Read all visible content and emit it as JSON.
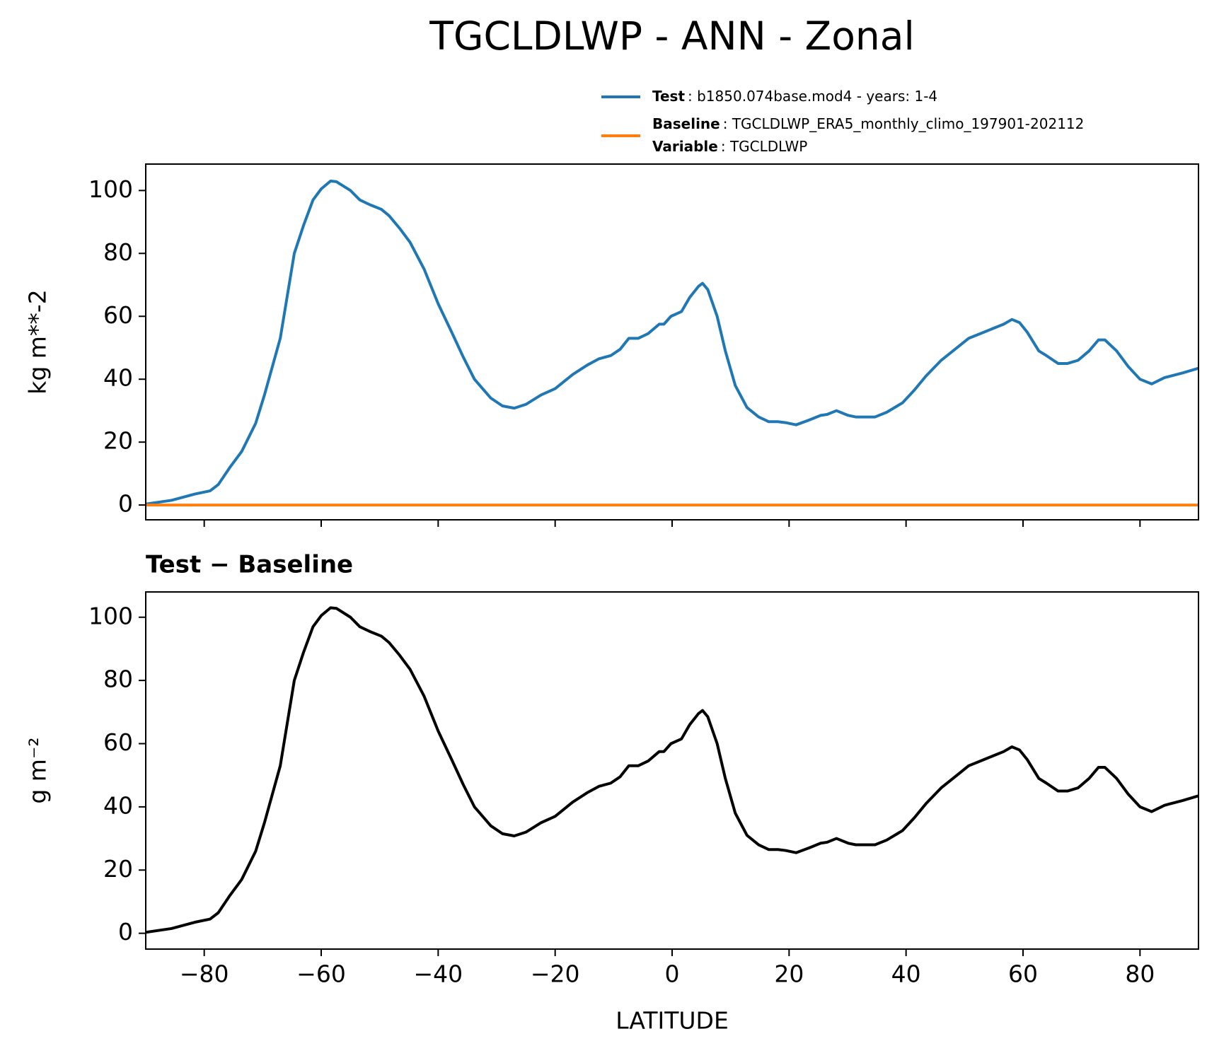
{
  "title": "TGCLDLWP - ANN - Zonal",
  "chart_data": [
    {
      "type": "line",
      "ylabel": "kg m**-2",
      "x": [
        -90,
        -85.6,
        -81.6,
        -79,
        -77.6,
        -75.6,
        -73.6,
        -71.2,
        -69.7,
        -67,
        -64.6,
        -63,
        -61.4,
        -60,
        -58.4,
        -57.4,
        -55,
        -53.4,
        -51.7,
        -49.7,
        -48.4,
        -46.6,
        -44.8,
        -42.4,
        -40,
        -37.7,
        -35.7,
        -33.8,
        -31,
        -29,
        -27,
        -25,
        -22.4,
        -20,
        -17,
        -14.5,
        -12.5,
        -10.5,
        -8.9,
        -7.4,
        -5.8,
        -4.1,
        -2.2,
        -1.4,
        -0.2,
        1.6,
        3,
        4.5,
        5.2,
        6.1,
        7.7,
        9.1,
        10.8,
        12.8,
        14.8,
        16.5,
        18.1,
        19.4,
        21.2,
        23.4,
        25.4,
        26.5,
        28.1,
        30.1,
        31.4,
        34.7,
        36.7,
        39.4,
        41.4,
        43.4,
        46,
        48.7,
        50.7,
        52.7,
        54.7,
        56.7,
        58.1,
        59.4,
        60.7,
        62.7,
        64,
        66,
        67.6,
        69.4,
        71.3,
        72.9,
        74,
        76,
        78,
        80,
        82,
        84.2,
        87.3,
        90
      ],
      "series": [
        {
          "name": "Test",
          "detail": ": b1850.074base.mod4 - years: 1-4",
          "color": "#1f77b4",
          "values": [
            0.3,
            1.5,
            3.5,
            4.5,
            6.5,
            12,
            17,
            26,
            35,
            53,
            80,
            89,
            97,
            100.5,
            103,
            102.8,
            100,
            97,
            95.5,
            94,
            92,
            88,
            83.5,
            75,
            64,
            55,
            47,
            40,
            34,
            31.5,
            30.8,
            32,
            35,
            37,
            41.5,
            44.5,
            46.5,
            47.5,
            49.5,
            53,
            53,
            54.5,
            57.5,
            57.5,
            60,
            61.5,
            66,
            69.5,
            70.5,
            68.5,
            60,
            49,
            38,
            31,
            28,
            26.5,
            26.5,
            26.2,
            25.5,
            27,
            28.5,
            28.8,
            30,
            28.5,
            28,
            28,
            29.5,
            32.5,
            36.5,
            41,
            46,
            50,
            53,
            54.5,
            56,
            57.5,
            59,
            58,
            55,
            49,
            47.5,
            45,
            45,
            46,
            49,
            52.5,
            52.5,
            49,
            44,
            40,
            38.5,
            40.5,
            42,
            43.5
          ]
        },
        {
          "name": "Baseline",
          "detail": ": TGCLDLWP_ERA5_monthly_climo_197901-202112",
          "color": "#ff7f0e",
          "extra": {
            "name": "Variable",
            "detail": ": TGCLDLWP"
          },
          "x": [
            -90,
            90
          ],
          "values": [
            0,
            0
          ]
        }
      ],
      "xlim": [
        -90,
        90
      ],
      "xticks": [
        -80,
        -60,
        -40,
        -20,
        0,
        20,
        40,
        60,
        80
      ],
      "ylim": [
        -4.7,
        108.4
      ],
      "yticks": [
        0,
        20,
        40,
        60,
        80,
        100
      ]
    },
    {
      "type": "line",
      "title": "Test − Baseline",
      "xlabel": "LATITUDE",
      "ylabel": "g m⁻²",
      "x": [
        -90,
        -85.6,
        -81.6,
        -79,
        -77.6,
        -75.6,
        -73.6,
        -71.2,
        -69.7,
        -67,
        -64.6,
        -63,
        -61.4,
        -60,
        -58.4,
        -57.4,
        -55,
        -53.4,
        -51.7,
        -49.7,
        -48.4,
        -46.6,
        -44.8,
        -42.4,
        -40,
        -37.7,
        -35.7,
        -33.8,
        -31,
        -29,
        -27,
        -25,
        -22.4,
        -20,
        -17,
        -14.5,
        -12.5,
        -10.5,
        -8.9,
        -7.4,
        -5.8,
        -4.1,
        -2.2,
        -1.4,
        -0.2,
        1.6,
        3,
        4.5,
        5.2,
        6.1,
        7.7,
        9.1,
        10.8,
        12.8,
        14.8,
        16.5,
        18.1,
        19.4,
        21.2,
        23.4,
        25.4,
        26.5,
        28.1,
        30.1,
        31.4,
        34.7,
        36.7,
        39.4,
        41.4,
        43.4,
        46,
        48.7,
        50.7,
        52.7,
        54.7,
        56.7,
        58.1,
        59.4,
        60.7,
        62.7,
        64,
        66,
        67.6,
        69.4,
        71.3,
        72.9,
        74,
        76,
        78,
        80,
        82,
        84.2,
        87.3,
        90
      ],
      "series": [
        {
          "color": "#000000",
          "values": [
            0.3,
            1.5,
            3.5,
            4.5,
            6.5,
            12,
            17,
            26,
            35,
            53,
            80,
            89,
            97,
            100.5,
            103,
            102.8,
            100,
            97,
            95.5,
            94,
            92,
            88,
            83.5,
            75,
            64,
            55,
            47,
            40,
            34,
            31.5,
            30.8,
            32,
            35,
            37,
            41.5,
            44.5,
            46.5,
            47.5,
            49.5,
            53,
            53,
            54.5,
            57.5,
            57.5,
            60,
            61.5,
            66,
            69.5,
            70.5,
            68.5,
            60,
            49,
            38,
            31,
            28,
            26.5,
            26.5,
            26.2,
            25.5,
            27,
            28.5,
            28.8,
            30,
            28.5,
            28,
            28,
            29.5,
            32.5,
            36.5,
            41,
            46,
            50,
            53,
            54.5,
            56,
            57.5,
            59,
            58,
            55,
            49,
            47.5,
            45,
            45,
            46,
            49,
            52.5,
            52.5,
            49,
            44,
            40,
            38.5,
            40.5,
            42,
            43.5
          ]
        }
      ],
      "xlim": [
        -90,
        90
      ],
      "xticks": [
        {
          "value": -80,
          "label": "−80"
        },
        {
          "value": -60,
          "label": "−60"
        },
        {
          "value": -40,
          "label": "−40"
        },
        {
          "value": -20,
          "label": "−20"
        },
        0,
        20,
        40,
        60,
        80
      ],
      "ylim": [
        -5,
        108
      ],
      "yticks": [
        0,
        20,
        40,
        60,
        80,
        100
      ]
    }
  ]
}
